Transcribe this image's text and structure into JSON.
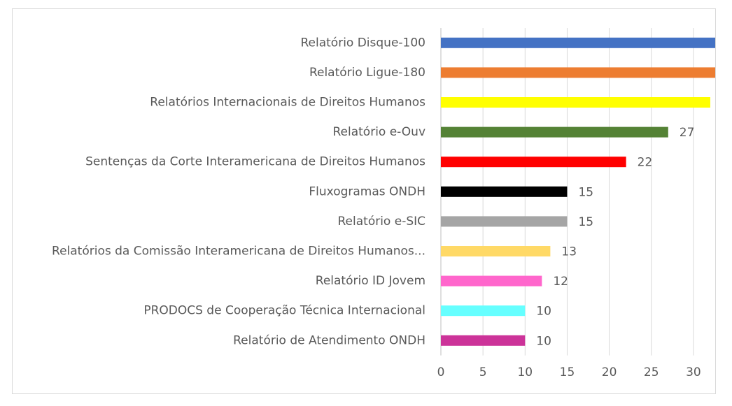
{
  "chart_data": {
    "type": "bar",
    "orientation": "horizontal",
    "categories": [
      "Relatório Disque-100",
      "Relatório Ligue-180",
      "Relatórios Internacionais de Direitos Humanos",
      "Relatório e-Ouv",
      "Sentenças da Corte Interamericana de Direitos Humanos",
      "Fluxogramas ONDH",
      "Relatório e-SIC",
      "Relatórios da Comissão Interamericana de Direitos Humanos...",
      "Relatório ID Jovem",
      "PRODOCS de Cooperação Técnica Internacional",
      "Relatório de Atendimento ONDH"
    ],
    "values": [
      33,
      33,
      32,
      27,
      22,
      15,
      15,
      13,
      12,
      10,
      10
    ],
    "data_labels": [
      "",
      "",
      "",
      "27",
      "22",
      "15",
      "15",
      "13",
      "12",
      "10",
      "10"
    ],
    "colors": [
      "#4472c4",
      "#ed7d31",
      "#ffff00",
      "#548235",
      "#ff0000",
      "#000000",
      "#a5a5a5",
      "#ffd966",
      "#ff66cc",
      "#66ffff",
      "#cc3399"
    ],
    "xticks": [
      "0",
      "5",
      "10",
      "15",
      "20",
      "25",
      "30"
    ],
    "xlim": [
      0,
      32.5
    ],
    "grid": true,
    "title": "",
    "xlabel": "",
    "ylabel": ""
  }
}
